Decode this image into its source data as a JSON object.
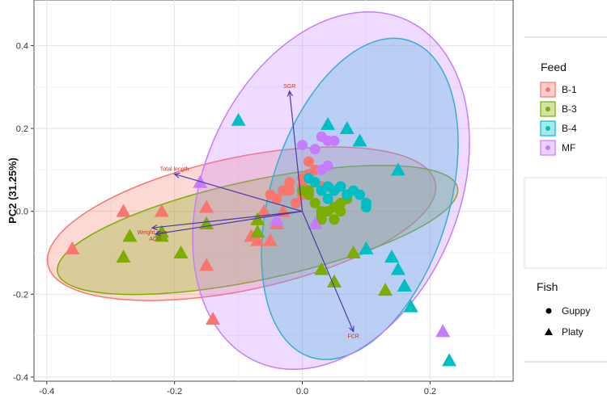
{
  "chart_data": {
    "type": "scatter",
    "title": "",
    "xlabel": "",
    "ylabel": "PC2 (31.25%)",
    "xlim": [
      -0.42,
      0.33
    ],
    "ylim": [
      -0.41,
      0.51
    ],
    "x_ticks": [
      "-0.4",
      "-0.2",
      "0.0",
      "0.2"
    ],
    "x_tick_values": [
      -0.4,
      -0.2,
      0.0,
      0.2
    ],
    "y_ticks": [
      "0.4",
      "0.2",
      "0.0",
      "-0.2",
      "-0.4"
    ],
    "y_tick_values": [
      0.4,
      0.2,
      0.0,
      -0.2,
      -0.4
    ],
    "grid": true,
    "legend_position": "right",
    "feed_legend": {
      "title": "Feed",
      "entries": [
        {
          "label": "B-1",
          "color": "#F8766D"
        },
        {
          "label": "B-3",
          "color": "#7CAE00"
        },
        {
          "label": "B-4",
          "color": "#00BFC4"
        },
        {
          "label": "MF",
          "color": "#C77CFF"
        }
      ]
    },
    "fish_legend": {
      "title": "Fish",
      "entries": [
        {
          "label": "Guppy",
          "shape": "circle"
        },
        {
          "label": "Platy",
          "shape": "triangle"
        }
      ]
    },
    "ellipses": [
      {
        "group": "B-1",
        "color": "#F8766D",
        "cx": -0.095,
        "cy": -0.03,
        "rx": 0.31,
        "ry": 0.16,
        "angle_deg": 12
      },
      {
        "group": "B-3",
        "color": "#7CAE00",
        "cx": -0.07,
        "cy": -0.045,
        "rx": 0.32,
        "ry": 0.12,
        "angle_deg": 12
      },
      {
        "group": "B-4",
        "color": "#00BFC4",
        "cx": 0.09,
        "cy": 0.03,
        "rx": 0.14,
        "ry": 0.4,
        "angle_deg": -17
      },
      {
        "group": "MF",
        "color": "#C77CFF",
        "cx": 0.045,
        "cy": 0.05,
        "rx": 0.2,
        "ry": 0.45,
        "angle_deg": -23
      }
    ],
    "loadings": [
      {
        "label": "SGR",
        "x": -0.02,
        "y": 0.29
      },
      {
        "label": "Total length",
        "x": -0.2,
        "y": 0.09
      },
      {
        "label": "Weight gain",
        "x": -0.235,
        "y": -0.04
      },
      {
        "label": "ADG",
        "x": -0.23,
        "y": -0.055
      },
      {
        "label": "FCR",
        "x": 0.08,
        "y": -0.29
      }
    ],
    "origin": [
      0.0,
      0.0
    ],
    "series": [
      {
        "feed": "B-1",
        "fish": "Guppy",
        "points": [
          [
            -0.05,
            0.04
          ],
          [
            -0.04,
            0.03
          ],
          [
            -0.03,
            0.05
          ],
          [
            -0.02,
            0.05
          ],
          [
            -0.02,
            0.07
          ],
          [
            0.0,
            0.06
          ],
          [
            0.0,
            0.08
          ],
          [
            0.01,
            0.05
          ],
          [
            0.01,
            0.09
          ],
          [
            0.01,
            0.12
          ],
          [
            0.02,
            0.1
          ],
          [
            0.02,
            0.02
          ],
          [
            -0.01,
            0.02
          ],
          [
            0.0,
            0.04
          ],
          [
            0.03,
            0.06
          ]
        ]
      },
      {
        "feed": "B-1",
        "fish": "Platy",
        "points": [
          [
            -0.36,
            -0.09
          ],
          [
            -0.28,
            0.0
          ],
          [
            -0.22,
            0.0
          ],
          [
            -0.15,
            0.01
          ],
          [
            -0.15,
            -0.13
          ],
          [
            -0.14,
            -0.26
          ],
          [
            -0.08,
            -0.06
          ],
          [
            -0.07,
            -0.07
          ],
          [
            -0.05,
            -0.07
          ],
          [
            -0.04,
            -0.03
          ],
          [
            -0.03,
            0.0
          ],
          [
            -0.06,
            0.0
          ]
        ]
      },
      {
        "feed": "B-3",
        "fish": "Guppy",
        "points": [
          [
            0.0,
            0.05
          ],
          [
            0.01,
            0.05
          ],
          [
            0.01,
            0.04
          ],
          [
            0.02,
            0.02
          ],
          [
            0.03,
            0.0
          ],
          [
            0.03,
            -0.01
          ],
          [
            0.04,
            0.0
          ],
          [
            0.05,
            0.01
          ],
          [
            0.06,
            0.0
          ],
          [
            0.06,
            0.02
          ],
          [
            0.07,
            0.03
          ],
          [
            0.03,
            -0.02
          ],
          [
            0.05,
            -0.02
          ]
        ]
      },
      {
        "feed": "B-3",
        "fish": "Platy",
        "points": [
          [
            -0.27,
            -0.06
          ],
          [
            -0.28,
            -0.11
          ],
          [
            -0.22,
            -0.05
          ],
          [
            -0.22,
            -0.06
          ],
          [
            -0.19,
            -0.1
          ],
          [
            -0.15,
            -0.03
          ],
          [
            -0.07,
            -0.02
          ],
          [
            0.03,
            -0.14
          ],
          [
            0.05,
            -0.17
          ],
          [
            0.08,
            -0.1
          ],
          [
            0.13,
            -0.19
          ],
          [
            0.16,
            -0.18
          ],
          [
            -0.07,
            -0.05
          ]
        ]
      },
      {
        "feed": "B-4",
        "fish": "Guppy",
        "points": [
          [
            0.01,
            0.08
          ],
          [
            0.02,
            0.07
          ],
          [
            0.03,
            0.05
          ],
          [
            0.04,
            0.03
          ],
          [
            0.04,
            0.06
          ],
          [
            0.05,
            0.05
          ],
          [
            0.06,
            0.06
          ],
          [
            0.07,
            0.04
          ],
          [
            0.08,
            0.05
          ],
          [
            0.09,
            0.04
          ],
          [
            0.1,
            0.02
          ],
          [
            0.1,
            0.01
          ]
        ]
      },
      {
        "feed": "B-4",
        "fish": "Platy",
        "points": [
          [
            -0.1,
            0.22
          ],
          [
            0.04,
            0.21
          ],
          [
            0.07,
            0.2
          ],
          [
            0.09,
            0.17
          ],
          [
            0.15,
            0.1
          ],
          [
            0.1,
            -0.09
          ],
          [
            0.14,
            -0.11
          ],
          [
            0.15,
            -0.14
          ],
          [
            0.16,
            -0.18
          ],
          [
            0.17,
            -0.23
          ],
          [
            0.23,
            -0.36
          ]
        ]
      },
      {
        "feed": "MF",
        "fish": "Guppy",
        "points": [
          [
            0.0,
            0.16
          ],
          [
            0.02,
            0.15
          ],
          [
            0.03,
            0.18
          ],
          [
            0.04,
            0.17
          ],
          [
            0.05,
            0.17
          ],
          [
            0.03,
            0.1
          ],
          [
            0.04,
            0.11
          ]
        ]
      },
      {
        "feed": "MF",
        "fish": "Platy",
        "points": [
          [
            -0.16,
            0.07
          ],
          [
            -0.04,
            -0.02
          ],
          [
            0.02,
            -0.03
          ],
          [
            0.22,
            -0.29
          ]
        ]
      }
    ]
  }
}
